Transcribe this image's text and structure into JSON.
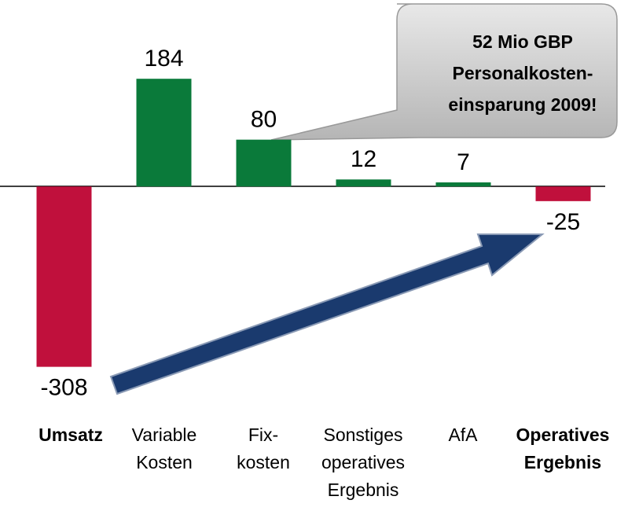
{
  "chart_data": {
    "type": "bar",
    "categories": [
      [
        "Umsatz"
      ],
      [
        "Variable",
        "Kosten"
      ],
      [
        "Fix-",
        "kosten"
      ],
      [
        "Sonstiges",
        "operatives",
        "Ergebnis"
      ],
      [
        "AfA"
      ],
      [
        "Operatives",
        "Ergebnis"
      ]
    ],
    "category_bold": [
      true,
      false,
      false,
      false,
      false,
      true
    ],
    "values": [
      -308,
      184,
      80,
      12,
      7,
      -25
    ],
    "positive_color": "#0a7a3a",
    "negative_color": "#c0103c",
    "ylim": [
      -330,
      195
    ],
    "grid": false,
    "annotation": {
      "lines": [
        "52 Mio GBP",
        "Personalkosten-",
        "einsparung 2009!"
      ]
    }
  }
}
